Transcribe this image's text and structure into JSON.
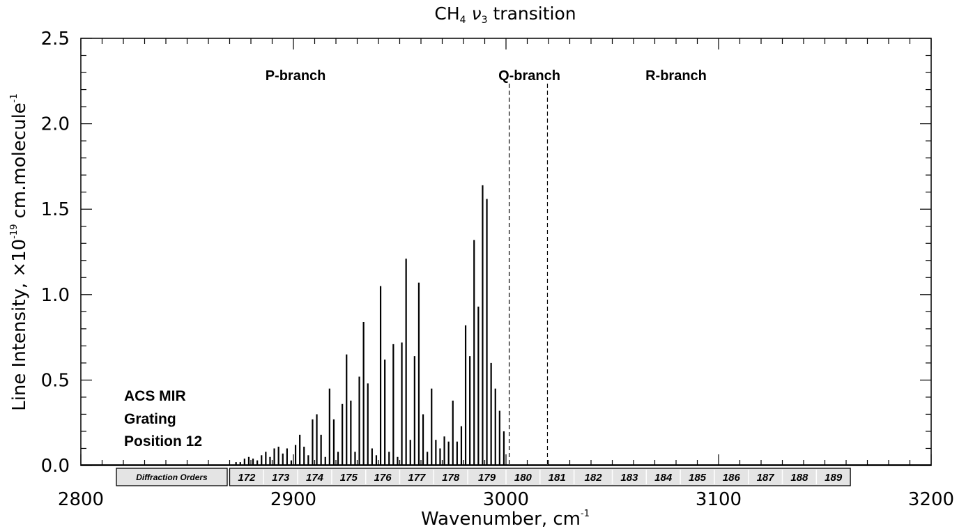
{
  "chart_data": {
    "type": "bar",
    "title_main": "CH",
    "title_sub1": "4",
    "title_nu": "ν",
    "title_sub2": "3",
    "title_rest": "transition",
    "xlabel_main": "Wavenumber, cm",
    "xlabel_sup": "-1",
    "ylabel_main": "Line Intensity, ×10",
    "ylabel_sup1": "-19",
    "ylabel_mid": "cm.molecule",
    "ylabel_sup2": "-1",
    "xlim": [
      2800,
      3200
    ],
    "ylim": [
      0,
      2.5
    ],
    "xticks": [
      2800,
      2900,
      3000,
      3100,
      3200
    ],
    "xtick_labels": [
      "2800",
      "2900",
      "3000",
      "3100",
      "3200"
    ],
    "yticks": [
      0,
      0.5,
      1.0,
      1.5,
      2.0,
      2.5
    ],
    "ytick_labels": [
      "0.0",
      "0.5",
      "1.0",
      "1.5",
      "2.0",
      "2.5"
    ],
    "grid": false,
    "branches": [
      {
        "label": "P-branch",
        "x": 2901
      },
      {
        "label": "Q-branch",
        "x": 3011
      },
      {
        "label": "R-branch",
        "x": 3080
      }
    ],
    "q_branch_bounds": [
      3001.5,
      3019.5
    ],
    "annotation_lines": [
      "ACS MIR",
      "Grating",
      "Position 12"
    ],
    "diffraction_label": "Diffraction Orders",
    "diffraction_orders": [
      {
        "label": "172",
        "start": 2870.0,
        "end": 2886.0
      },
      {
        "label": "173",
        "start": 2886.0,
        "end": 2902.0
      },
      {
        "label": "174",
        "start": 2902.0,
        "end": 2918.0
      },
      {
        "label": "175",
        "start": 2918.0,
        "end": 2934.0
      },
      {
        "label": "176",
        "start": 2934.0,
        "end": 2950.0
      },
      {
        "label": "177",
        "start": 2950.0,
        "end": 2966.0
      },
      {
        "label": "178",
        "start": 2966.0,
        "end": 2982.0
      },
      {
        "label": "179",
        "start": 2982.0,
        "end": 3000.0
      },
      {
        "label": "180",
        "start": 3000.0,
        "end": 3016.0
      },
      {
        "label": "181",
        "start": 3016.0,
        "end": 3032.0
      },
      {
        "label": "182",
        "start": 3032.0,
        "end": 3050.0
      },
      {
        "label": "183",
        "start": 3050.0,
        "end": 3066.0
      },
      {
        "label": "184",
        "start": 3066.0,
        "end": 3082.0
      },
      {
        "label": "185",
        "start": 3082.0,
        "end": 3098.0
      },
      {
        "label": "186",
        "start": 3098.0,
        "end": 3114.0
      },
      {
        "label": "187",
        "start": 3114.0,
        "end": 3130.0
      },
      {
        "label": "188",
        "start": 3130.0,
        "end": 3146.0
      },
      {
        "label": "189",
        "start": 3146.0,
        "end": 3162.0
      }
    ],
    "lines_x": [
      2873,
      2875,
      2877,
      2879,
      2881,
      2883,
      2885,
      2887,
      2889,
      2891,
      2893,
      2895,
      2897,
      2899,
      2901,
      2903,
      2905,
      2907,
      2909,
      2911,
      2913,
      2915,
      2917,
      2919,
      2921,
      2923,
      2925,
      2927,
      2929,
      2931,
      2933,
      2935,
      2937,
      2939,
      2941,
      2943,
      2945,
      2947,
      2949,
      2951,
      2953,
      2955,
      2957,
      2959,
      2961,
      2963,
      2965,
      2967,
      2969,
      2971,
      2973,
      2975,
      2977,
      2979,
      2981,
      2983,
      2985,
      2987,
      2989,
      2991,
      2993,
      2995,
      2997,
      2999
    ],
    "lines_y": [
      0.02,
      0.02,
      0.04,
      0.05,
      0.04,
      0.03,
      0.06,
      0.08,
      0.05,
      0.1,
      0.11,
      0.07,
      0.1,
      0.03,
      0.12,
      0.18,
      0.11,
      0.06,
      0.27,
      0.3,
      0.18,
      0.05,
      0.45,
      0.27,
      0.08,
      0.36,
      0.65,
      0.38,
      0.08,
      0.52,
      0.84,
      0.48,
      0.1,
      0.06,
      1.05,
      0.62,
      0.08,
      0.71,
      0.05,
      0.72,
      1.21,
      0.15,
      0.64,
      1.07,
      0.3,
      0.08,
      0.45,
      0.15,
      0.1,
      0.17,
      0.14,
      0.38,
      0.14,
      0.23,
      0.82,
      0.64,
      1.32,
      0.93,
      1.64,
      1.56,
      0.6,
      0.45,
      0.32,
      0.2
    ]
  }
}
